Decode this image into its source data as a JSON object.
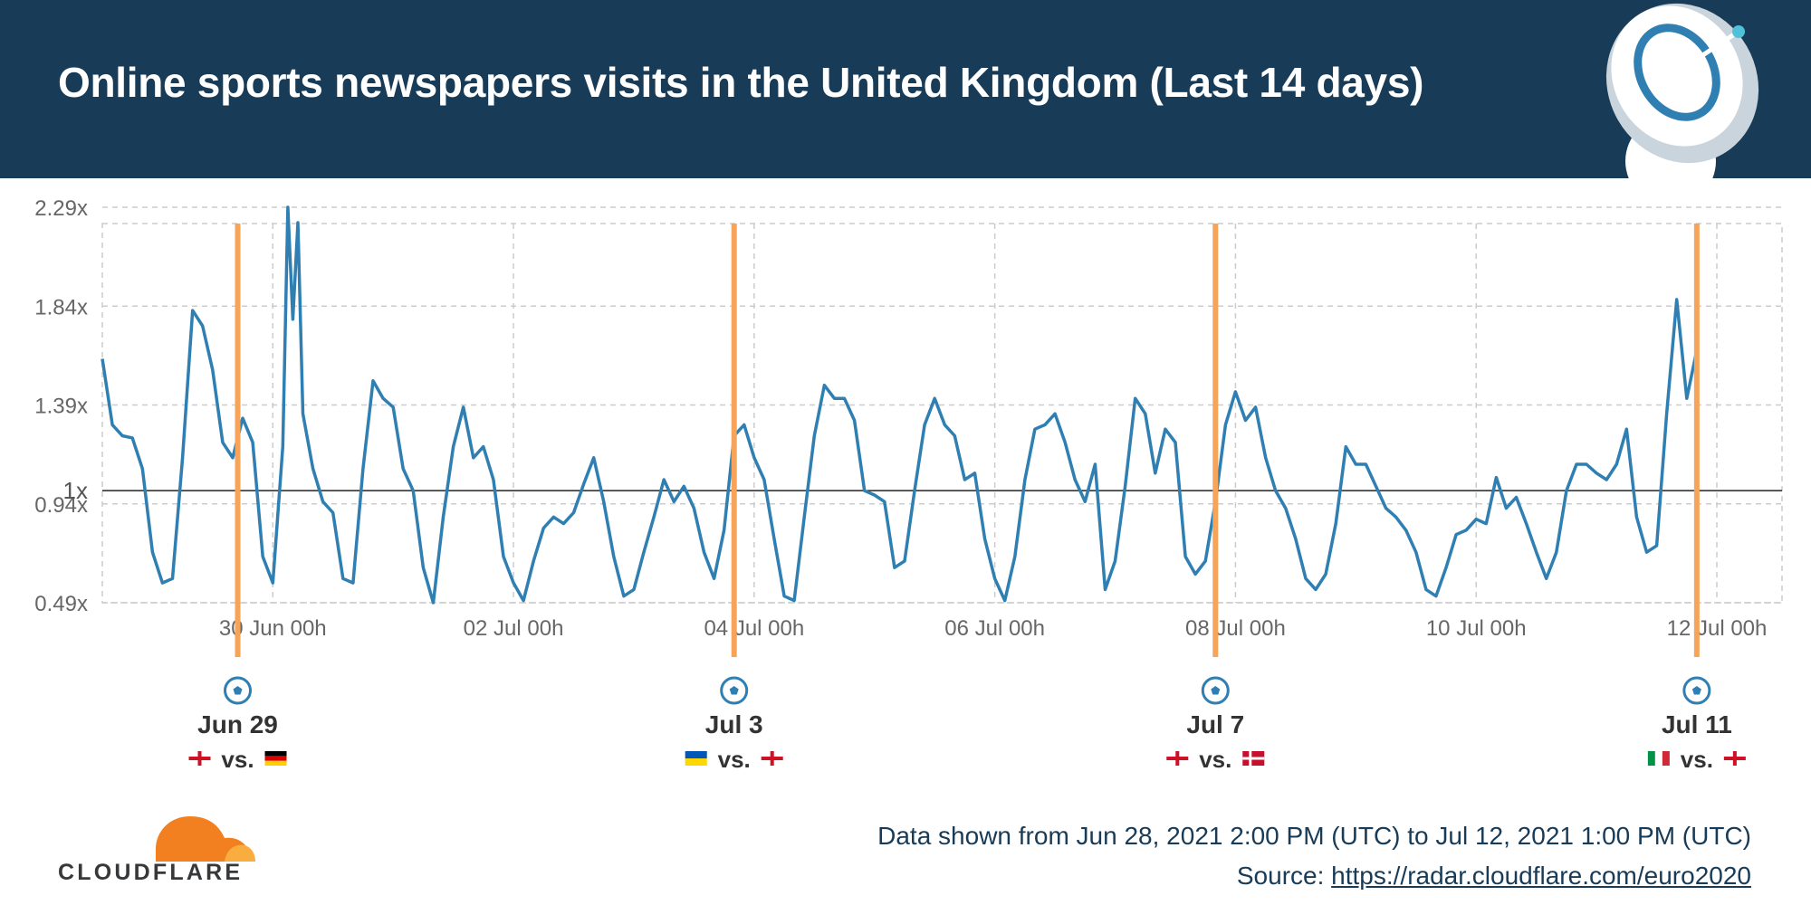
{
  "header": {
    "title": "Online sports newspapers visits in the United Kingdom (Last 14 days)",
    "background": "#183b57"
  },
  "footer": {
    "range_text": "Data shown from Jun 28, 2021 2:00 PM (UTC) to Jul 12, 2021 1:00 PM (UTC)",
    "source_label": "Source: ",
    "source_link": "https://radar.cloudflare.com/euro2020"
  },
  "logo": {
    "text": "CLOUDFLARE",
    "color": "#f38020"
  },
  "icons": {
    "header_art": "satellite-dish-icon",
    "match": "soccer-ball-icon"
  },
  "colors": {
    "line": "#2f7fb2",
    "match_marker": "#f6a45a",
    "baseline": "#222222",
    "grid": "#cccccc"
  },
  "chart_data": {
    "type": "line",
    "title": "Online sports newspapers visits in the United Kingdom (Last 14 days)",
    "x_range": [
      "Jun 28, 2021 2:00 PM (UTC)",
      "Jul 12, 2021 1:00 PM (UTC)"
    ],
    "x_unit": "hourly (UTC)",
    "ylim": [
      0.49,
      2.29
    ],
    "yticks": [
      "0.49x",
      "0.94x",
      "1.39x",
      "1.84x",
      "2.29x"
    ],
    "ytick_values": [
      0.49,
      0.94,
      1.39,
      1.84,
      2.29
    ],
    "baseline": {
      "label": "1x",
      "value": 1.0
    },
    "xticks": [
      "30 Jun 00h",
      "02 Jul 00h",
      "04 Jul 00h",
      "06 Jul 00h",
      "08 Jul 00h",
      "10 Jul 00h",
      "12 Jul 00h"
    ],
    "xtick_dates": [
      "2021-06-30 00:00",
      "2021-07-02 00:00",
      "2021-07-04 00:00",
      "2021-07-06 00:00",
      "2021-07-08 00:00",
      "2021-07-10 00:00",
      "2021-07-12 00:00"
    ],
    "grid": true,
    "series": [
      {
        "points": [
          [
            "2021-06-28 14:00",
            1.6
          ],
          [
            "2021-06-28 16:00",
            1.3
          ],
          [
            "2021-06-28 18:00",
            1.25
          ],
          [
            "2021-06-28 20:00",
            1.24
          ],
          [
            "2021-06-28 22:00",
            1.1
          ],
          [
            "2021-06-29 00:00",
            0.72
          ],
          [
            "2021-06-29 02:00",
            0.58
          ],
          [
            "2021-06-29 04:00",
            0.6
          ],
          [
            "2021-06-29 06:00",
            1.15
          ],
          [
            "2021-06-29 08:00",
            1.82
          ],
          [
            "2021-06-29 10:00",
            1.75
          ],
          [
            "2021-06-29 12:00",
            1.55
          ],
          [
            "2021-06-29 14:00",
            1.22
          ],
          [
            "2021-06-29 16:00",
            1.15
          ],
          [
            "2021-06-29 18:00",
            1.33
          ],
          [
            "2021-06-29 20:00",
            1.22
          ],
          [
            "2021-06-29 22:00",
            0.7
          ],
          [
            "2021-06-30 00:00",
            0.58
          ],
          [
            "2021-06-30 02:00",
            1.2
          ],
          [
            "2021-06-30 03:00",
            2.29
          ],
          [
            "2021-06-30 04:00",
            1.78
          ],
          [
            "2021-06-30 05:00",
            2.22
          ],
          [
            "2021-06-30 06:00",
            1.35
          ],
          [
            "2021-06-30 08:00",
            1.1
          ],
          [
            "2021-06-30 10:00",
            0.95
          ],
          [
            "2021-06-30 12:00",
            0.9
          ],
          [
            "2021-06-30 14:00",
            0.6
          ],
          [
            "2021-06-30 16:00",
            0.58
          ],
          [
            "2021-06-30 18:00",
            1.1
          ],
          [
            "2021-06-30 20:00",
            1.5
          ],
          [
            "2021-06-30 22:00",
            1.42
          ],
          [
            "2021-07-01 00:00",
            1.38
          ],
          [
            "2021-07-01 02:00",
            1.1
          ],
          [
            "2021-07-01 04:00",
            1.0
          ],
          [
            "2021-07-01 06:00",
            0.65
          ],
          [
            "2021-07-01 08:00",
            0.49
          ],
          [
            "2021-07-01 10:00",
            0.88
          ],
          [
            "2021-07-01 12:00",
            1.2
          ],
          [
            "2021-07-01 14:00",
            1.38
          ],
          [
            "2021-07-01 16:00",
            1.15
          ],
          [
            "2021-07-01 18:00",
            1.2
          ],
          [
            "2021-07-01 20:00",
            1.05
          ],
          [
            "2021-07-01 22:00",
            0.7
          ],
          [
            "2021-07-02 00:00",
            0.58
          ],
          [
            "2021-07-02 02:00",
            0.5
          ],
          [
            "2021-07-02 04:00",
            0.68
          ],
          [
            "2021-07-02 06:00",
            0.83
          ],
          [
            "2021-07-02 08:00",
            0.88
          ],
          [
            "2021-07-02 10:00",
            0.85
          ],
          [
            "2021-07-02 12:00",
            0.9
          ],
          [
            "2021-07-02 14:00",
            1.03
          ],
          [
            "2021-07-02 16:00",
            1.15
          ],
          [
            "2021-07-02 18:00",
            0.95
          ],
          [
            "2021-07-02 20:00",
            0.7
          ],
          [
            "2021-07-02 22:00",
            0.52
          ],
          [
            "2021-07-03 00:00",
            0.55
          ],
          [
            "2021-07-03 02:00",
            0.72
          ],
          [
            "2021-07-03 04:00",
            0.88
          ],
          [
            "2021-07-03 06:00",
            1.05
          ],
          [
            "2021-07-03 08:00",
            0.95
          ],
          [
            "2021-07-03 10:00",
            1.02
          ],
          [
            "2021-07-03 12:00",
            0.92
          ],
          [
            "2021-07-03 14:00",
            0.72
          ],
          [
            "2021-07-03 16:00",
            0.6
          ],
          [
            "2021-07-03 18:00",
            0.82
          ],
          [
            "2021-07-03 20:00",
            1.25
          ],
          [
            "2021-07-03 22:00",
            1.3
          ],
          [
            "2021-07-04 00:00",
            1.15
          ],
          [
            "2021-07-04 02:00",
            1.05
          ],
          [
            "2021-07-04 04:00",
            0.78
          ],
          [
            "2021-07-04 06:00",
            0.52
          ],
          [
            "2021-07-04 08:00",
            0.5
          ],
          [
            "2021-07-04 10:00",
            0.88
          ],
          [
            "2021-07-04 12:00",
            1.25
          ],
          [
            "2021-07-04 14:00",
            1.48
          ],
          [
            "2021-07-04 16:00",
            1.42
          ],
          [
            "2021-07-04 18:00",
            1.42
          ],
          [
            "2021-07-04 20:00",
            1.32
          ],
          [
            "2021-07-04 22:00",
            1.0
          ],
          [
            "2021-07-05 00:00",
            0.98
          ],
          [
            "2021-07-05 02:00",
            0.95
          ],
          [
            "2021-07-05 04:00",
            0.65
          ],
          [
            "2021-07-05 06:00",
            0.68
          ],
          [
            "2021-07-05 08:00",
            1.0
          ],
          [
            "2021-07-05 10:00",
            1.3
          ],
          [
            "2021-07-05 12:00",
            1.42
          ],
          [
            "2021-07-05 14:00",
            1.3
          ],
          [
            "2021-07-05 16:00",
            1.25
          ],
          [
            "2021-07-05 18:00",
            1.05
          ],
          [
            "2021-07-05 20:00",
            1.08
          ],
          [
            "2021-07-05 22:00",
            0.78
          ],
          [
            "2021-07-06 00:00",
            0.6
          ],
          [
            "2021-07-06 02:00",
            0.5
          ],
          [
            "2021-07-06 04:00",
            0.7
          ],
          [
            "2021-07-06 06:00",
            1.05
          ],
          [
            "2021-07-06 08:00",
            1.28
          ],
          [
            "2021-07-06 10:00",
            1.3
          ],
          [
            "2021-07-06 12:00",
            1.35
          ],
          [
            "2021-07-06 14:00",
            1.22
          ],
          [
            "2021-07-06 16:00",
            1.05
          ],
          [
            "2021-07-06 18:00",
            0.95
          ],
          [
            "2021-07-06 20:00",
            1.12
          ],
          [
            "2021-07-06 22:00",
            0.55
          ],
          [
            "2021-07-07 00:00",
            0.68
          ],
          [
            "2021-07-07 02:00",
            1.02
          ],
          [
            "2021-07-07 04:00",
            1.42
          ],
          [
            "2021-07-07 06:00",
            1.35
          ],
          [
            "2021-07-07 08:00",
            1.08
          ],
          [
            "2021-07-07 10:00",
            1.28
          ],
          [
            "2021-07-07 12:00",
            1.22
          ],
          [
            "2021-07-07 14:00",
            0.7
          ],
          [
            "2021-07-07 16:00",
            0.62
          ],
          [
            "2021-07-07 18:00",
            0.68
          ],
          [
            "2021-07-07 20:00",
            0.95
          ],
          [
            "2021-07-07 22:00",
            1.3
          ],
          [
            "2021-07-08 00:00",
            1.45
          ],
          [
            "2021-07-08 02:00",
            1.32
          ],
          [
            "2021-07-08 04:00",
            1.38
          ],
          [
            "2021-07-08 06:00",
            1.15
          ],
          [
            "2021-07-08 08:00",
            1.0
          ],
          [
            "2021-07-08 10:00",
            0.92
          ],
          [
            "2021-07-08 12:00",
            0.78
          ],
          [
            "2021-07-08 14:00",
            0.6
          ],
          [
            "2021-07-08 16:00",
            0.55
          ],
          [
            "2021-07-08 18:00",
            0.62
          ],
          [
            "2021-07-08 20:00",
            0.85
          ],
          [
            "2021-07-08 22:00",
            1.2
          ],
          [
            "2021-07-09 00:00",
            1.12
          ],
          [
            "2021-07-09 02:00",
            1.12
          ],
          [
            "2021-07-09 04:00",
            1.02
          ],
          [
            "2021-07-09 06:00",
            0.92
          ],
          [
            "2021-07-09 08:00",
            0.88
          ],
          [
            "2021-07-09 10:00",
            0.82
          ],
          [
            "2021-07-09 12:00",
            0.72
          ],
          [
            "2021-07-09 14:00",
            0.55
          ],
          [
            "2021-07-09 16:00",
            0.52
          ],
          [
            "2021-07-09 18:00",
            0.65
          ],
          [
            "2021-07-09 20:00",
            0.8
          ],
          [
            "2021-07-09 22:00",
            0.82
          ],
          [
            "2021-07-10 00:00",
            0.87
          ],
          [
            "2021-07-10 02:00",
            0.85
          ],
          [
            "2021-07-10 04:00",
            1.06
          ],
          [
            "2021-07-10 06:00",
            0.92
          ],
          [
            "2021-07-10 08:00",
            0.97
          ],
          [
            "2021-07-10 10:00",
            0.85
          ],
          [
            "2021-07-10 12:00",
            0.72
          ],
          [
            "2021-07-10 14:00",
            0.6
          ],
          [
            "2021-07-10 16:00",
            0.72
          ],
          [
            "2021-07-10 18:00",
            1.0
          ],
          [
            "2021-07-10 20:00",
            1.12
          ],
          [
            "2021-07-10 22:00",
            1.12
          ],
          [
            "2021-07-11 00:00",
            1.08
          ],
          [
            "2021-07-11 02:00",
            1.05
          ],
          [
            "2021-07-11 04:00",
            1.12
          ],
          [
            "2021-07-11 06:00",
            1.28
          ],
          [
            "2021-07-11 08:00",
            0.88
          ],
          [
            "2021-07-11 10:00",
            0.72
          ],
          [
            "2021-07-11 12:00",
            0.75
          ],
          [
            "2021-07-11 14:00",
            1.35
          ],
          [
            "2021-07-11 16:00",
            1.87
          ],
          [
            "2021-07-11 18:00",
            1.42
          ],
          [
            "2021-07-11 20:00",
            1.64
          ]
        ]
      }
    ],
    "match_markers": [
      {
        "date": "Jun 29",
        "time": "2021-06-29 17:00",
        "home": "England",
        "away": "Germany",
        "vs": "vs."
      },
      {
        "date": "Jul 3",
        "time": "2021-07-03 20:00",
        "home": "Ukraine",
        "away": "England",
        "vs": "vs."
      },
      {
        "date": "Jul 7",
        "time": "2021-07-07 20:00",
        "home": "England",
        "away": "Denmark",
        "vs": "vs."
      },
      {
        "date": "Jul 11",
        "time": "2021-07-11 20:00",
        "home": "Italy",
        "away": "England",
        "vs": "vs."
      }
    ]
  }
}
